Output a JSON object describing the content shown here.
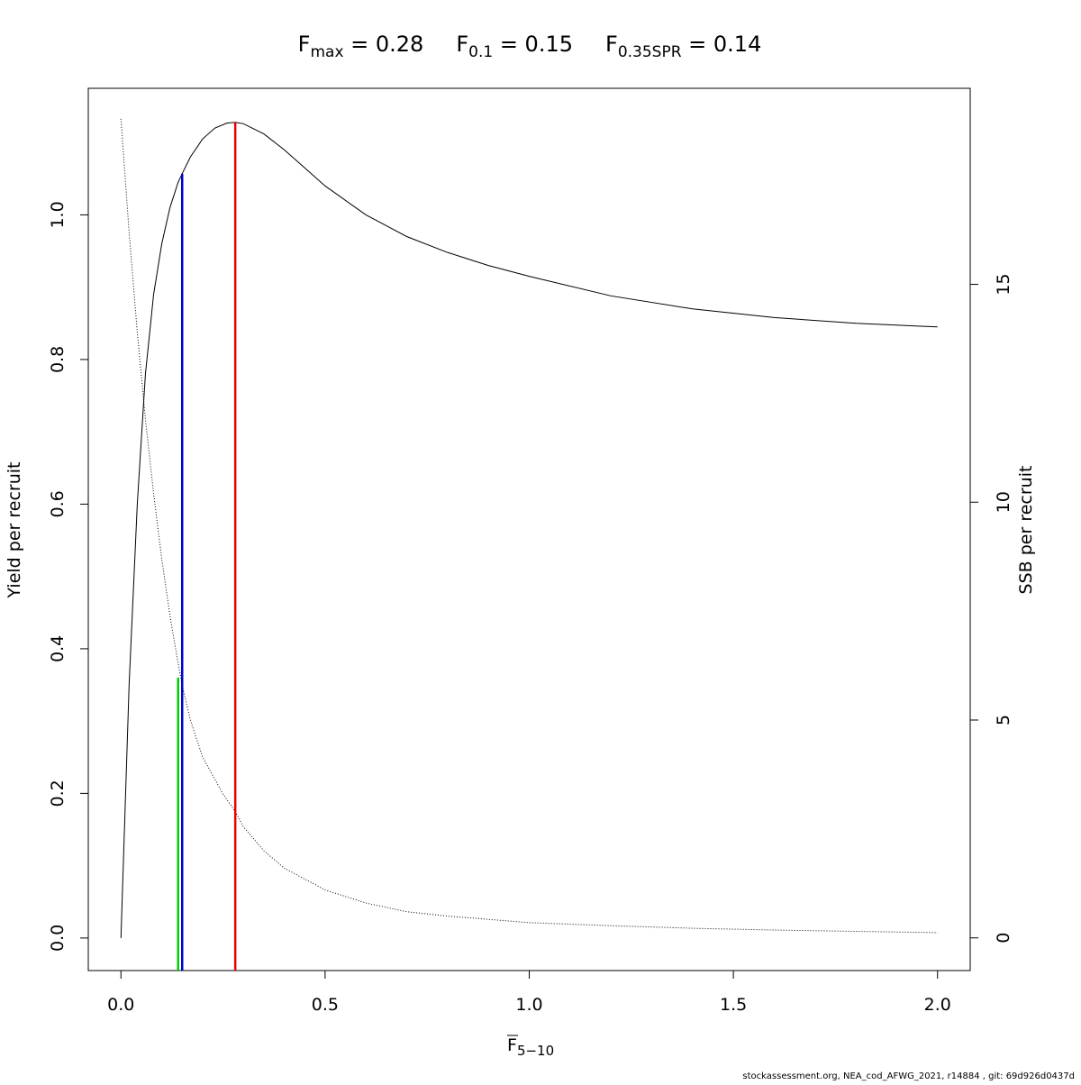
{
  "chart_data": {
    "type": "line",
    "title_parts": [
      {
        "base": "F",
        "sub": "max",
        "rest": " = 0.28"
      },
      {
        "base": "F",
        "sub": "0.1",
        "rest": " = 0.15"
      },
      {
        "base": "F",
        "sub": "0.35SPR",
        "rest": " = 0.14"
      }
    ],
    "xlabel": {
      "base": "F",
      "sub": "5−10",
      "overline": true
    },
    "ylabel_left": "Yield per recruit",
    "ylabel_right": "SSB per recruit",
    "xlim": [
      -0.08,
      2.08
    ],
    "ylim_left": [
      -0.045,
      1.175
    ],
    "ylim_right": [
      -0.75,
      19.5
    ],
    "x_ticks": [
      0.0,
      0.5,
      1.0,
      1.5,
      2.0
    ],
    "x_tick_labels": [
      "0.0",
      "0.5",
      "1.0",
      "1.5",
      "2.0"
    ],
    "y_left_ticks": [
      0.0,
      0.2,
      0.4,
      0.6,
      0.8,
      1.0
    ],
    "y_left_tick_labels": [
      "0.0",
      "0.2",
      "0.4",
      "0.6",
      "0.8",
      "1.0"
    ],
    "y_right_ticks": [
      0,
      5,
      10,
      15
    ],
    "y_right_tick_labels": [
      "0",
      "5",
      "10",
      "15"
    ],
    "series": [
      {
        "name": "Yield per recruit",
        "axis": "left",
        "style": "solid",
        "color": "#000000",
        "x": [
          0.0,
          0.02,
          0.04,
          0.06,
          0.08,
          0.1,
          0.12,
          0.14,
          0.15,
          0.17,
          0.2,
          0.23,
          0.26,
          0.28,
          0.3,
          0.35,
          0.4,
          0.45,
          0.5,
          0.6,
          0.7,
          0.8,
          0.9,
          1.0,
          1.2,
          1.4,
          1.6,
          1.8,
          2.0
        ],
        "y": [
          0.0,
          0.35,
          0.6,
          0.78,
          0.89,
          0.96,
          1.01,
          1.045,
          1.057,
          1.08,
          1.105,
          1.12,
          1.127,
          1.128,
          1.126,
          1.112,
          1.09,
          1.065,
          1.04,
          1.0,
          0.97,
          0.948,
          0.93,
          0.915,
          0.888,
          0.87,
          0.858,
          0.85,
          0.845
        ]
      },
      {
        "name": "SSB per recruit",
        "axis": "right",
        "style": "dotted",
        "color": "#000000",
        "x": [
          0.0,
          0.02,
          0.04,
          0.06,
          0.08,
          0.1,
          0.12,
          0.14,
          0.15,
          0.17,
          0.2,
          0.25,
          0.28,
          0.3,
          0.35,
          0.4,
          0.5,
          0.6,
          0.7,
          0.8,
          1.0,
          1.2,
          1.4,
          1.6,
          1.8,
          2.0
        ],
        "y": [
          18.8,
          16.2,
          13.9,
          11.9,
          10.2,
          8.7,
          7.4,
          6.3,
          5.8,
          5.0,
          4.15,
          3.3,
          2.9,
          2.55,
          2.0,
          1.6,
          1.1,
          0.8,
          0.6,
          0.5,
          0.35,
          0.28,
          0.22,
          0.18,
          0.15,
          0.12
        ]
      }
    ],
    "reference_lines": [
      {
        "name": "F0.35SPR",
        "x": 0.14,
        "y_top": 0.36,
        "color": "#00cd00"
      },
      {
        "name": "F0.1",
        "x": 0.15,
        "y_top": 1.057,
        "color": "#0000cd"
      },
      {
        "name": "Fmax",
        "x": 0.28,
        "y_top": 1.128,
        "color": "#ee0000"
      }
    ]
  },
  "footer": "stockassessment.org, NEA_cod_AFWG_2021, r14884 , git: 69d926d0437d"
}
